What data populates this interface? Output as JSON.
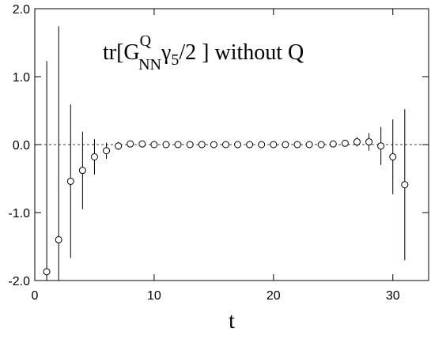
{
  "chart_data": {
    "type": "scatter",
    "title_parts": [
      "tr[G",
      "Q",
      "NN",
      "γ",
      "5",
      "/2 ] without Q"
    ],
    "x_label": "t",
    "xlim": [
      0,
      33
    ],
    "ylim": [
      -2,
      2
    ],
    "xticks": [
      0,
      10,
      20,
      30
    ],
    "yticks": [
      {
        "value": -2,
        "label": "-2.0"
      },
      {
        "value": -1,
        "label": "-1.0"
      },
      {
        "value": 0,
        "label": "0.0"
      },
      {
        "value": 1,
        "label": "1.0"
      },
      {
        "value": 2,
        "label": "2.0"
      }
    ],
    "hline": 0,
    "color": "#000000",
    "x": [
      1,
      2,
      3,
      4,
      5,
      6,
      7,
      8,
      9,
      10,
      11,
      12,
      13,
      14,
      15,
      16,
      17,
      18,
      19,
      20,
      21,
      22,
      23,
      24,
      25,
      26,
      27,
      28,
      29,
      30,
      31
    ],
    "values": [
      -1.87,
      -1.4,
      -0.54,
      -0.38,
      -0.18,
      -0.09,
      -0.02,
      0.01,
      0.01,
      0.0,
      0.0,
      0.0,
      0.0,
      0.0,
      0.0,
      0.0,
      0.0,
      0.0,
      0.0,
      0.0,
      0.0,
      0.0,
      0.0,
      0.0,
      0.01,
      0.02,
      0.04,
      0.04,
      -0.02,
      -0.18,
      -0.59
    ],
    "errors": [
      3.1,
      3.14,
      1.13,
      0.57,
      0.26,
      0.12,
      0.06,
      0.03,
      0.02,
      0.02,
      0.02,
      0.02,
      0.02,
      0.02,
      0.02,
      0.02,
      0.02,
      0.02,
      0.02,
      0.02,
      0.02,
      0.02,
      0.02,
      0.02,
      0.03,
      0.04,
      0.07,
      0.13,
      0.28,
      0.55,
      1.11
    ]
  }
}
